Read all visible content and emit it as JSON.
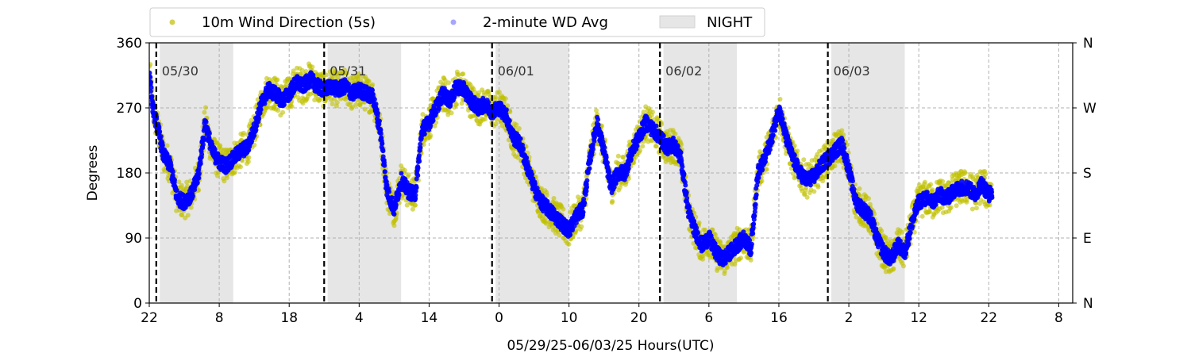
{
  "chart_data": {
    "type": "scatter",
    "xlabel": "05/29/25-06/03/25  Hours(UTC)",
    "ylabel": "Degrees",
    "x_unit": "hours",
    "xlim": [
      22,
      154
    ],
    "ylim": [
      0,
      360
    ],
    "x_ticks": [
      {
        "x": 22,
        "label": "22"
      },
      {
        "x": 32,
        "label": "8"
      },
      {
        "x": 42,
        "label": "18"
      },
      {
        "x": 52,
        "label": "4"
      },
      {
        "x": 62,
        "label": "14"
      },
      {
        "x": 72,
        "label": "0"
      },
      {
        "x": 82,
        "label": "10"
      },
      {
        "x": 92,
        "label": "20"
      },
      {
        "x": 102,
        "label": "6"
      },
      {
        "x": 112,
        "label": "16"
      },
      {
        "x": 122,
        "label": "2"
      },
      {
        "x": 132,
        "label": "12"
      },
      {
        "x": 142,
        "label": "22"
      },
      {
        "x": 152,
        "label": "8"
      }
    ],
    "y_ticks": [
      0,
      90,
      180,
      270,
      360
    ],
    "y2_ticks": [
      {
        "y": 0,
        "label": "N"
      },
      {
        "y": 90,
        "label": "E"
      },
      {
        "y": 180,
        "label": "S"
      },
      {
        "y": 270,
        "label": "W"
      },
      {
        "y": 360,
        "label": "N"
      }
    ],
    "grid": true,
    "legend_position": "top",
    "day_lines": [
      {
        "x": 23,
        "label": "05/30"
      },
      {
        "x": 47,
        "label": "05/31"
      },
      {
        "x": 71,
        "label": "06/01"
      },
      {
        "x": 95,
        "label": "06/02"
      },
      {
        "x": 119,
        "label": "06/03"
      }
    ],
    "night_bands": [
      [
        23.5,
        34
      ],
      [
        47.5,
        58
      ],
      [
        71.5,
        82
      ],
      [
        95.5,
        106
      ],
      [
        119.5,
        130
      ]
    ],
    "series": [
      {
        "name": "10m Wind Direction (5s)",
        "color": "#bfbf00",
        "spread": 24,
        "profile": [
          [
            22,
            320
          ],
          [
            22.5,
            270
          ],
          [
            23,
            250
          ],
          [
            23.5,
            230
          ],
          [
            24,
            205
          ],
          [
            25,
            190
          ],
          [
            26,
            145
          ],
          [
            27,
            140
          ],
          [
            28,
            150
          ],
          [
            29,
            175
          ],
          [
            30,
            250
          ],
          [
            31,
            210
          ],
          [
            32,
            195
          ],
          [
            33,
            190
          ],
          [
            34,
            200
          ],
          [
            35,
            210
          ],
          [
            36,
            215
          ],
          [
            37,
            240
          ],
          [
            38,
            275
          ],
          [
            39,
            295
          ],
          [
            40,
            290
          ],
          [
            41,
            280
          ],
          [
            42,
            290
          ],
          [
            43,
            305
          ],
          [
            44,
            300
          ],
          [
            45,
            310
          ],
          [
            46,
            300
          ],
          [
            47,
            295
          ],
          [
            48,
            300
          ],
          [
            49,
            295
          ],
          [
            50,
            300
          ],
          [
            51,
            290
          ],
          [
            52,
            295
          ],
          [
            53,
            290
          ],
          [
            54,
            285
          ],
          [
            55,
            240
          ],
          [
            56,
            155
          ],
          [
            57,
            130
          ],
          [
            58,
            170
          ],
          [
            59,
            155
          ],
          [
            60,
            150
          ],
          [
            61,
            240
          ],
          [
            62,
            250
          ],
          [
            63,
            270
          ],
          [
            64,
            290
          ],
          [
            65,
            280
          ],
          [
            66,
            300
          ],
          [
            67,
            295
          ],
          [
            68,
            280
          ],
          [
            69,
            270
          ],
          [
            70,
            275
          ],
          [
            71,
            265
          ],
          [
            72,
            270
          ],
          [
            73,
            260
          ],
          [
            74,
            230
          ],
          [
            75,
            220
          ],
          [
            76,
            190
          ],
          [
            77,
            160
          ],
          [
            78,
            140
          ],
          [
            79,
            130
          ],
          [
            80,
            120
          ],
          [
            81,
            110
          ],
          [
            82,
            100
          ],
          [
            83,
            120
          ],
          [
            84,
            130
          ],
          [
            85,
            200
          ],
          [
            86,
            250
          ],
          [
            87,
            210
          ],
          [
            88,
            160
          ],
          [
            89,
            180
          ],
          [
            90,
            180
          ],
          [
            91,
            210
          ],
          [
            92,
            230
          ],
          [
            93,
            250
          ],
          [
            94,
            240
          ],
          [
            95,
            230
          ],
          [
            96,
            215
          ],
          [
            97,
            220
          ],
          [
            98,
            200
          ],
          [
            99,
            130
          ],
          [
            100,
            100
          ],
          [
            101,
            80
          ],
          [
            102,
            90
          ],
          [
            103,
            70
          ],
          [
            104,
            60
          ],
          [
            105,
            70
          ],
          [
            106,
            80
          ],
          [
            107,
            90
          ],
          [
            108,
            75
          ],
          [
            109,
            180
          ],
          [
            110,
            200
          ],
          [
            111,
            230
          ],
          [
            112,
            270
          ],
          [
            113,
            230
          ],
          [
            114,
            200
          ],
          [
            115,
            180
          ],
          [
            116,
            170
          ],
          [
            117,
            175
          ],
          [
            118,
            190
          ],
          [
            119,
            200
          ],
          [
            120,
            210
          ],
          [
            121,
            220
          ],
          [
            122,
            185
          ],
          [
            123,
            140
          ],
          [
            124,
            130
          ],
          [
            125,
            120
          ],
          [
            126,
            90
          ],
          [
            127,
            70
          ],
          [
            128,
            60
          ],
          [
            129,
            80
          ],
          [
            130,
            70
          ],
          [
            131,
            110
          ],
          [
            132,
            140
          ],
          [
            133,
            145
          ],
          [
            134,
            140
          ],
          [
            135,
            150
          ],
          [
            136,
            145
          ],
          [
            137,
            155
          ],
          [
            138,
            160
          ],
          [
            139,
            160
          ],
          [
            140,
            150
          ],
          [
            141,
            165
          ],
          [
            142,
            150
          ],
          [
            142.5,
            155
          ]
        ]
      },
      {
        "name": "2-minute WD Avg",
        "color": "#0000ff",
        "spread": 10,
        "profile": [
          [
            22,
            320
          ],
          [
            22.5,
            270
          ],
          [
            23,
            250
          ],
          [
            23.5,
            230
          ],
          [
            24,
            205
          ],
          [
            25,
            190
          ],
          [
            26,
            145
          ],
          [
            27,
            140
          ],
          [
            28,
            150
          ],
          [
            29,
            175
          ],
          [
            30,
            250
          ],
          [
            31,
            210
          ],
          [
            32,
            195
          ],
          [
            33,
            190
          ],
          [
            34,
            200
          ],
          [
            35,
            210
          ],
          [
            36,
            215
          ],
          [
            37,
            240
          ],
          [
            38,
            275
          ],
          [
            39,
            295
          ],
          [
            40,
            290
          ],
          [
            41,
            280
          ],
          [
            42,
            290
          ],
          [
            43,
            305
          ],
          [
            44,
            300
          ],
          [
            45,
            310
          ],
          [
            46,
            300
          ],
          [
            47,
            295
          ],
          [
            48,
            300
          ],
          [
            49,
            295
          ],
          [
            50,
            300
          ],
          [
            51,
            290
          ],
          [
            52,
            295
          ],
          [
            53,
            290
          ],
          [
            54,
            285
          ],
          [
            55,
            240
          ],
          [
            56,
            155
          ],
          [
            57,
            130
          ],
          [
            58,
            170
          ],
          [
            59,
            155
          ],
          [
            60,
            150
          ],
          [
            61,
            240
          ],
          [
            62,
            250
          ],
          [
            63,
            270
          ],
          [
            64,
            290
          ],
          [
            65,
            280
          ],
          [
            66,
            300
          ],
          [
            67,
            295
          ],
          [
            68,
            280
          ],
          [
            69,
            270
          ],
          [
            70,
            275
          ],
          [
            71,
            265
          ],
          [
            72,
            270
          ],
          [
            73,
            260
          ],
          [
            74,
            230
          ],
          [
            75,
            220
          ],
          [
            76,
            190
          ],
          [
            77,
            160
          ],
          [
            78,
            140
          ],
          [
            79,
            130
          ],
          [
            80,
            120
          ],
          [
            81,
            110
          ],
          [
            82,
            100
          ],
          [
            83,
            120
          ],
          [
            84,
            130
          ],
          [
            85,
            200
          ],
          [
            86,
            250
          ],
          [
            87,
            210
          ],
          [
            88,
            160
          ],
          [
            89,
            180
          ],
          [
            90,
            180
          ],
          [
            91,
            210
          ],
          [
            92,
            230
          ],
          [
            93,
            250
          ],
          [
            94,
            240
          ],
          [
            95,
            230
          ],
          [
            96,
            215
          ],
          [
            97,
            220
          ],
          [
            98,
            200
          ],
          [
            99,
            130
          ],
          [
            100,
            100
          ],
          [
            101,
            80
          ],
          [
            102,
            90
          ],
          [
            103,
            70
          ],
          [
            104,
            60
          ],
          [
            105,
            70
          ],
          [
            106,
            80
          ],
          [
            107,
            90
          ],
          [
            108,
            75
          ],
          [
            109,
            180
          ],
          [
            110,
            200
          ],
          [
            111,
            230
          ],
          [
            112,
            270
          ],
          [
            113,
            230
          ],
          [
            114,
            200
          ],
          [
            115,
            180
          ],
          [
            116,
            170
          ],
          [
            117,
            175
          ],
          [
            118,
            190
          ],
          [
            119,
            200
          ],
          [
            120,
            210
          ],
          [
            121,
            220
          ],
          [
            122,
            185
          ],
          [
            123,
            140
          ],
          [
            124,
            130
          ],
          [
            125,
            120
          ],
          [
            126,
            90
          ],
          [
            127,
            70
          ],
          [
            128,
            60
          ],
          [
            129,
            80
          ],
          [
            130,
            70
          ],
          [
            131,
            110
          ],
          [
            132,
            140
          ],
          [
            133,
            145
          ],
          [
            134,
            140
          ],
          [
            135,
            150
          ],
          [
            136,
            145
          ],
          [
            137,
            155
          ],
          [
            138,
            160
          ],
          [
            139,
            160
          ],
          [
            140,
            150
          ],
          [
            141,
            165
          ],
          [
            142,
            150
          ],
          [
            142.5,
            155
          ]
        ]
      }
    ],
    "legend": [
      {
        "label": "10m Wind Direction (5s)",
        "marker": "dot",
        "color": "#bfbf00"
      },
      {
        "label": "2-minute WD Avg",
        "marker": "dot",
        "color": "#0000ff"
      },
      {
        "label": "NIGHT",
        "marker": "patch",
        "color": "#e6e6e6"
      }
    ]
  }
}
